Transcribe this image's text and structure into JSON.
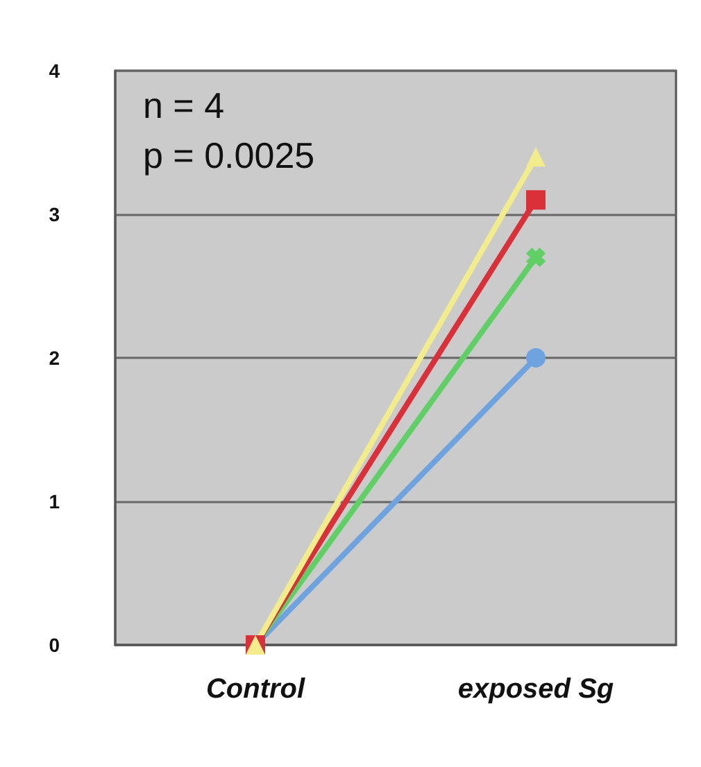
{
  "chart_data": {
    "type": "line",
    "categories": [
      "Control",
      "exposed Sg"
    ],
    "series": [
      {
        "color": "#6fa3e0",
        "marker": "circle",
        "values": [
          0,
          2.0
        ]
      },
      {
        "color": "#5fcf66",
        "marker": "cross",
        "values": [
          0,
          2.7
        ]
      },
      {
        "color": "#d9303a",
        "marker": "square",
        "values": [
          0,
          3.1
        ]
      },
      {
        "color": "#f2ec8c",
        "marker": "triangle",
        "values": [
          0,
          3.4
        ]
      }
    ],
    "ylim": [
      0,
      4
    ],
    "yticks": [
      0,
      1,
      2,
      3,
      4
    ],
    "grid": "y",
    "annotations": [
      "n = 4",
      "p = 0.0025"
    ]
  }
}
